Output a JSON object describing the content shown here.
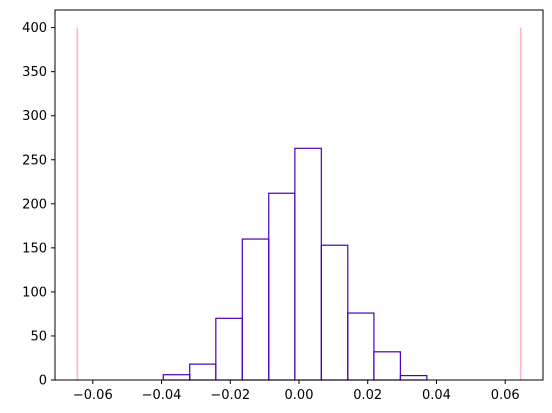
{
  "chart_data": {
    "type": "bar",
    "title": "",
    "xlabel": "",
    "ylabel": "",
    "xlim": [
      -0.071,
      0.071
    ],
    "ylim": [
      0,
      420
    ],
    "grid": false,
    "x_ticks": [
      {
        "value": -0.06,
        "label": "−0.06"
      },
      {
        "value": -0.04,
        "label": "−0.04"
      },
      {
        "value": -0.02,
        "label": "−0.02"
      },
      {
        "value": 0.0,
        "label": "0.00"
      },
      {
        "value": 0.02,
        "label": "0.02"
      },
      {
        "value": 0.04,
        "label": "0.04"
      },
      {
        "value": 0.06,
        "label": "0.06"
      }
    ],
    "y_ticks": [
      {
        "value": 0,
        "label": "0"
      },
      {
        "value": 50,
        "label": "50"
      },
      {
        "value": 100,
        "label": "100"
      },
      {
        "value": 150,
        "label": "150"
      },
      {
        "value": 200,
        "label": "200"
      },
      {
        "value": 250,
        "label": "250"
      },
      {
        "value": 300,
        "label": "300"
      },
      {
        "value": 350,
        "label": "350"
      },
      {
        "value": 400,
        "label": "400"
      }
    ],
    "histogram": {
      "bin_edges": [
        -0.0395,
        -0.0318,
        -0.0242,
        -0.0165,
        -0.0088,
        -0.0012,
        0.0065,
        0.0142,
        0.0218,
        0.0295,
        0.0372
      ],
      "counts": [
        6,
        18,
        70,
        160,
        212,
        263,
        153,
        76,
        32,
        5
      ],
      "edge_color": "#4b00b0",
      "fill_color": "none"
    },
    "reference_lines": [
      {
        "x": -0.0645,
        "y_from": 0,
        "y_to": 400,
        "color": "#ffb6c1"
      },
      {
        "x": 0.0645,
        "y_from": 0,
        "y_to": 400,
        "color": "#ffb6c1"
      }
    ]
  }
}
